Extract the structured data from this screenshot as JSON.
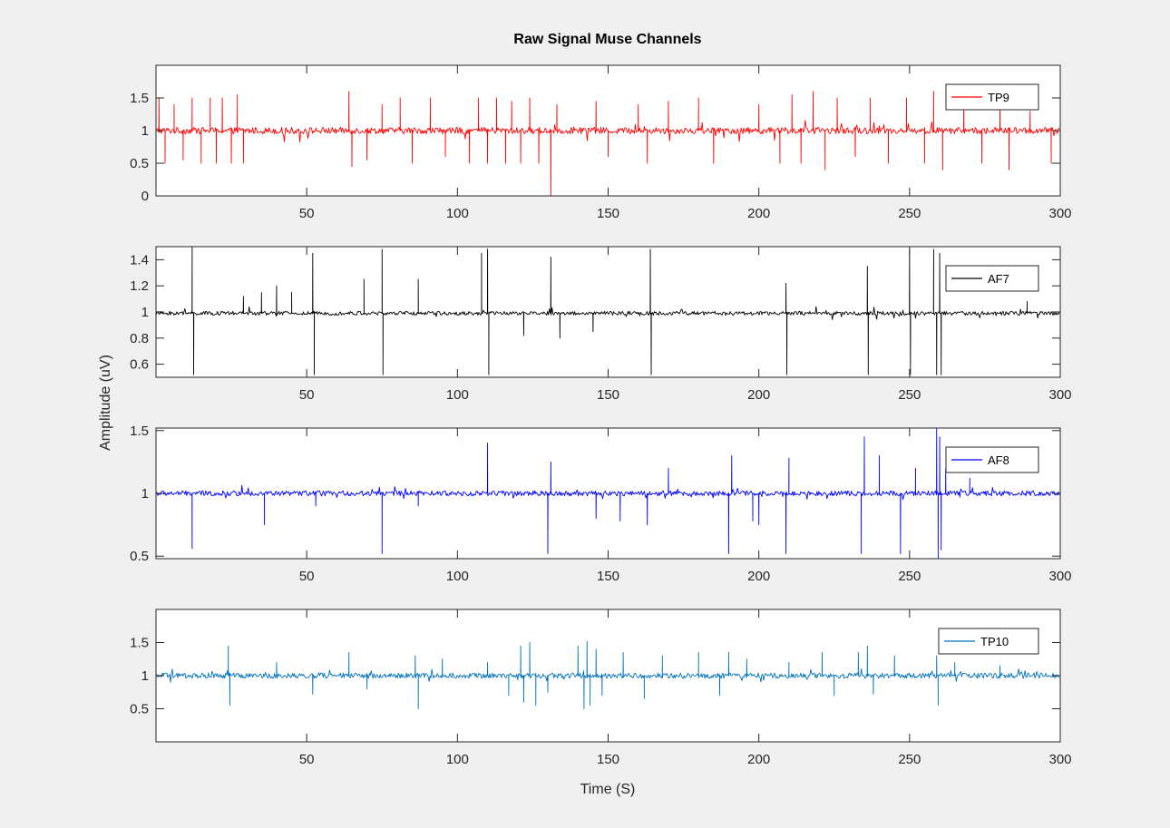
{
  "figure": {
    "title": "Raw Signal Muse Channels",
    "ylabel": "Amplitude (uV)",
    "xlabel": "Time (S)",
    "background": "#f0f0f0"
  },
  "chart_data": [
    {
      "type": "line",
      "series": [
        {
          "name": "TP9",
          "color": "#ff0000"
        }
      ],
      "xlim": [
        0,
        300
      ],
      "ylim": [
        0,
        2
      ],
      "xticks": [
        50,
        100,
        150,
        200,
        250,
        300
      ],
      "yticks": [
        0,
        0.5,
        1,
        1.5
      ],
      "ytick_labels": [
        "0",
        "0.5",
        "1",
        "1.5"
      ],
      "baseline": 1.0,
      "noise": 0.05,
      "legend_position": "top-right",
      "spikes": [
        {
          "x": 1,
          "y": 1.5
        },
        {
          "x": 3,
          "y": 0.5
        },
        {
          "x": 6,
          "y": 1.4
        },
        {
          "x": 9,
          "y": 0.55
        },
        {
          "x": 12,
          "y": 1.5
        },
        {
          "x": 15,
          "y": 0.5
        },
        {
          "x": 18,
          "y": 1.5
        },
        {
          "x": 20,
          "y": 0.5
        },
        {
          "x": 22,
          "y": 1.5
        },
        {
          "x": 25,
          "y": 0.5
        },
        {
          "x": 27,
          "y": 1.55
        },
        {
          "x": 29,
          "y": 0.5
        },
        {
          "x": 64,
          "y": 1.6
        },
        {
          "x": 65,
          "y": 0.45
        },
        {
          "x": 70,
          "y": 0.55
        },
        {
          "x": 75,
          "y": 1.4
        },
        {
          "x": 81,
          "y": 1.5
        },
        {
          "x": 85,
          "y": 0.5
        },
        {
          "x": 91,
          "y": 1.5
        },
        {
          "x": 96,
          "y": 0.6
        },
        {
          "x": 104,
          "y": 0.5
        },
        {
          "x": 107,
          "y": 1.5
        },
        {
          "x": 110,
          "y": 0.5
        },
        {
          "x": 113,
          "y": 1.5
        },
        {
          "x": 116,
          "y": 0.5
        },
        {
          "x": 118,
          "y": 1.45
        },
        {
          "x": 121,
          "y": 0.5
        },
        {
          "x": 124,
          "y": 1.5
        },
        {
          "x": 127,
          "y": 0.5
        },
        {
          "x": 131,
          "y": 0.0
        },
        {
          "x": 133,
          "y": 1.4
        },
        {
          "x": 146,
          "y": 1.45
        },
        {
          "x": 150,
          "y": 0.6
        },
        {
          "x": 160,
          "y": 1.4
        },
        {
          "x": 163,
          "y": 0.5
        },
        {
          "x": 170,
          "y": 1.45
        },
        {
          "x": 180,
          "y": 1.5
        },
        {
          "x": 185,
          "y": 0.5
        },
        {
          "x": 200,
          "y": 1.4
        },
        {
          "x": 207,
          "y": 0.5
        },
        {
          "x": 211,
          "y": 1.55
        },
        {
          "x": 214,
          "y": 0.5
        },
        {
          "x": 218,
          "y": 1.6
        },
        {
          "x": 222,
          "y": 0.4
        },
        {
          "x": 226,
          "y": 1.5
        },
        {
          "x": 232,
          "y": 0.6
        },
        {
          "x": 237,
          "y": 1.5
        },
        {
          "x": 243,
          "y": 0.5
        },
        {
          "x": 249,
          "y": 1.5
        },
        {
          "x": 255,
          "y": 0.5
        },
        {
          "x": 258,
          "y": 1.6
        },
        {
          "x": 261,
          "y": 0.4
        },
        {
          "x": 268,
          "y": 1.5
        },
        {
          "x": 274,
          "y": 0.5
        },
        {
          "x": 280,
          "y": 1.45
        },
        {
          "x": 283,
          "y": 0.4
        },
        {
          "x": 290,
          "y": 1.3
        },
        {
          "x": 297,
          "y": 0.5
        }
      ]
    },
    {
      "type": "line",
      "series": [
        {
          "name": "AF7",
          "color": "#000000"
        }
      ],
      "xlim": [
        0,
        300
      ],
      "ylim": [
        0.5,
        1.5
      ],
      "xticks": [
        50,
        100,
        150,
        200,
        250,
        300
      ],
      "yticks": [
        0.6,
        0.8,
        1,
        1.2,
        1.4
      ],
      "ytick_labels": [
        "0.6",
        "0.8",
        "1",
        "1.2",
        "1.4"
      ],
      "baseline": 0.99,
      "noise": 0.015,
      "legend_position": "top-right",
      "spikes": [
        {
          "x": 12,
          "y": 1.5
        },
        {
          "x": 12.5,
          "y": 0.52
        },
        {
          "x": 29,
          "y": 1.12
        },
        {
          "x": 35,
          "y": 1.15
        },
        {
          "x": 40,
          "y": 1.2
        },
        {
          "x": 45,
          "y": 1.15
        },
        {
          "x": 52,
          "y": 1.45
        },
        {
          "x": 52.5,
          "y": 0.52
        },
        {
          "x": 69,
          "y": 1.25
        },
        {
          "x": 75,
          "y": 1.48
        },
        {
          "x": 75.3,
          "y": 0.52
        },
        {
          "x": 87,
          "y": 1.25
        },
        {
          "x": 108,
          "y": 1.45
        },
        {
          "x": 110,
          "y": 1.48
        },
        {
          "x": 110.4,
          "y": 0.52
        },
        {
          "x": 122,
          "y": 0.82
        },
        {
          "x": 131,
          "y": 1.42
        },
        {
          "x": 134,
          "y": 0.8
        },
        {
          "x": 145,
          "y": 0.85
        },
        {
          "x": 164,
          "y": 1.48
        },
        {
          "x": 164.3,
          "y": 0.52
        },
        {
          "x": 209,
          "y": 1.22
        },
        {
          "x": 209.3,
          "y": 0.52
        },
        {
          "x": 236,
          "y": 1.35
        },
        {
          "x": 236.3,
          "y": 0.52
        },
        {
          "x": 250,
          "y": 1.48
        },
        {
          "x": 250.3,
          "y": 0.52
        },
        {
          "x": 258,
          "y": 1.48
        },
        {
          "x": 259,
          "y": 0.52
        },
        {
          "x": 260,
          "y": 1.45
        },
        {
          "x": 260.5,
          "y": 0.52
        },
        {
          "x": 289,
          "y": 1.08
        }
      ]
    },
    {
      "type": "line",
      "series": [
        {
          "name": "AF8",
          "color": "#0000ff"
        }
      ],
      "xlim": [
        0,
        300
      ],
      "ylim": [
        0.48,
        1.52
      ],
      "xticks": [
        50,
        100,
        150,
        200,
        250,
        300
      ],
      "yticks": [
        0.5,
        1,
        1.5
      ],
      "ytick_labels": [
        "0.5",
        "1",
        "1.5"
      ],
      "baseline": 1.0,
      "noise": 0.02,
      "legend_position": "top-right",
      "spikes": [
        {
          "x": 12,
          "y": 0.56
        },
        {
          "x": 36,
          "y": 0.75
        },
        {
          "x": 53,
          "y": 0.9
        },
        {
          "x": 75,
          "y": 0.52
        },
        {
          "x": 87,
          "y": 0.9
        },
        {
          "x": 110,
          "y": 1.4
        },
        {
          "x": 130,
          "y": 0.52
        },
        {
          "x": 131,
          "y": 1.25
        },
        {
          "x": 146,
          "y": 0.8
        },
        {
          "x": 154,
          "y": 0.78
        },
        {
          "x": 163,
          "y": 0.75
        },
        {
          "x": 170,
          "y": 1.2
        },
        {
          "x": 190,
          "y": 0.52
        },
        {
          "x": 191,
          "y": 1.3
        },
        {
          "x": 198,
          "y": 0.78
        },
        {
          "x": 200,
          "y": 0.75
        },
        {
          "x": 209,
          "y": 0.52
        },
        {
          "x": 210,
          "y": 1.28
        },
        {
          "x": 234,
          "y": 0.52
        },
        {
          "x": 235,
          "y": 1.45
        },
        {
          "x": 240,
          "y": 1.3
        },
        {
          "x": 247,
          "y": 0.52
        },
        {
          "x": 252,
          "y": 1.2
        },
        {
          "x": 259,
          "y": 1.52
        },
        {
          "x": 259.5,
          "y": 0.48
        },
        {
          "x": 260,
          "y": 1.45
        },
        {
          "x": 260.5,
          "y": 0.55
        },
        {
          "x": 262,
          "y": 1.2
        },
        {
          "x": 270,
          "y": 1.12
        }
      ]
    },
    {
      "type": "line",
      "series": [
        {
          "name": "TP10",
          "color": "#0072bd"
        }
      ],
      "xlim": [
        0,
        300
      ],
      "ylim": [
        0,
        2
      ],
      "xticks": [
        50,
        100,
        150,
        200,
        250,
        300
      ],
      "yticks": [
        0.5,
        1,
        1.5
      ],
      "ytick_labels": [
        "0.5",
        "1",
        "1.5"
      ],
      "baseline": 1.0,
      "noise": 0.04,
      "legend_position": "top-right",
      "spikes": [
        {
          "x": 24,
          "y": 1.45
        },
        {
          "x": 24.5,
          "y": 0.55
        },
        {
          "x": 40,
          "y": 1.2
        },
        {
          "x": 52,
          "y": 0.72
        },
        {
          "x": 64,
          "y": 1.35
        },
        {
          "x": 70,
          "y": 0.8
        },
        {
          "x": 86,
          "y": 1.3
        },
        {
          "x": 87,
          "y": 0.5
        },
        {
          "x": 95,
          "y": 1.25
        },
        {
          "x": 110,
          "y": 1.2
        },
        {
          "x": 117,
          "y": 0.7
        },
        {
          "x": 121,
          "y": 1.45
        },
        {
          "x": 122,
          "y": 0.6
        },
        {
          "x": 124,
          "y": 1.5
        },
        {
          "x": 126,
          "y": 0.55
        },
        {
          "x": 130,
          "y": 0.75
        },
        {
          "x": 140,
          "y": 1.45
        },
        {
          "x": 142,
          "y": 0.5
        },
        {
          "x": 143,
          "y": 1.52
        },
        {
          "x": 144,
          "y": 0.55
        },
        {
          "x": 146,
          "y": 1.4
        },
        {
          "x": 148,
          "y": 0.7
        },
        {
          "x": 155,
          "y": 1.35
        },
        {
          "x": 162,
          "y": 0.65
        },
        {
          "x": 168,
          "y": 1.3
        },
        {
          "x": 180,
          "y": 1.35
        },
        {
          "x": 187,
          "y": 0.7
        },
        {
          "x": 190,
          "y": 1.35
        },
        {
          "x": 196,
          "y": 1.25
        },
        {
          "x": 210,
          "y": 1.2
        },
        {
          "x": 221,
          "y": 1.35
        },
        {
          "x": 225,
          "y": 0.7
        },
        {
          "x": 233,
          "y": 1.35
        },
        {
          "x": 236,
          "y": 1.45
        },
        {
          "x": 238,
          "y": 0.72
        },
        {
          "x": 245,
          "y": 1.3
        },
        {
          "x": 259,
          "y": 1.3
        },
        {
          "x": 259.5,
          "y": 0.55
        },
        {
          "x": 265,
          "y": 1.2
        },
        {
          "x": 280,
          "y": 1.15
        }
      ]
    }
  ]
}
